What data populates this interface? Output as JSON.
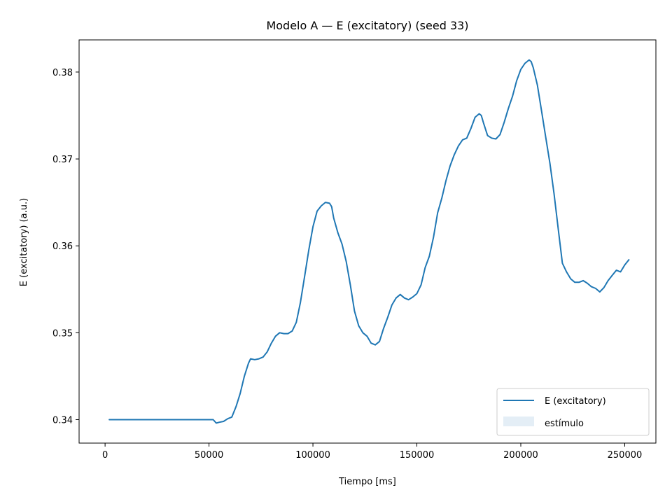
{
  "chart_data": {
    "type": "line",
    "title": "Modelo A — E (excitatory) (seed 33)",
    "xlabel": "Tiempo [ms]",
    "ylabel": "E (excitatory) (a.u.)",
    "xlim": [
      -12500,
      265000
    ],
    "ylim": [
      0.3373,
      0.3837
    ],
    "xticks": [
      0,
      50000,
      100000,
      150000,
      200000,
      250000
    ],
    "xtick_labels": [
      "0",
      "50000",
      "100000",
      "150000",
      "200000",
      "250000"
    ],
    "yticks": [
      0.34,
      0.35,
      0.36,
      0.37,
      0.38
    ],
    "ytick_labels": [
      "0.34",
      "0.35",
      "0.36",
      "0.37",
      "0.38"
    ],
    "grid": false,
    "legend": {
      "position": "bottom-right",
      "entries": [
        {
          "label": "E (excitatory)",
          "kind": "line",
          "color": "#1f77b4"
        },
        {
          "label": "estímulo",
          "kind": "patch",
          "color": "#1f77b4",
          "alpha": 0.12
        }
      ]
    },
    "series": [
      {
        "name": "E (excitatory)",
        "color": "#1f77b4",
        "x": [
          2000,
          10000,
          20000,
          30000,
          40000,
          50000,
          52000,
          53500,
          55000,
          57000,
          59000,
          61000,
          63000,
          65000,
          67000,
          69000,
          70000,
          72000,
          74000,
          76000,
          78000,
          80000,
          82000,
          84000,
          86000,
          88000,
          90000,
          92000,
          94000,
          96000,
          98000,
          100000,
          102000,
          104000,
          106000,
          108000,
          109000,
          110000,
          112000,
          114000,
          116000,
          118000,
          120000,
          122000,
          124000,
          126000,
          128000,
          130000,
          132000,
          134000,
          136000,
          138000,
          140000,
          142000,
          144000,
          146000,
          148000,
          150000,
          152000,
          154000,
          156000,
          158000,
          160000,
          162000,
          164000,
          166000,
          168000,
          170000,
          172000,
          174000,
          176000,
          178000,
          180000,
          181000,
          182000,
          184000,
          186000,
          188000,
          190000,
          192000,
          194000,
          196000,
          198000,
          200000,
          202000,
          204000,
          205000,
          206000,
          208000,
          210000,
          212000,
          214000,
          216000,
          218000,
          220000,
          222000,
          224000,
          226000,
          228000,
          230000,
          232000,
          234000,
          236000,
          238000,
          240000,
          242000,
          244000,
          246000,
          248000,
          250000,
          252000
        ],
        "values": [
          0.34,
          0.34,
          0.34,
          0.34,
          0.34,
          0.34,
          0.34,
          0.3396,
          0.3397,
          0.3398,
          0.3401,
          0.3403,
          0.3415,
          0.343,
          0.345,
          0.3465,
          0.347,
          0.3469,
          0.347,
          0.3472,
          0.3478,
          0.3488,
          0.3496,
          0.35,
          0.3499,
          0.3499,
          0.3502,
          0.3512,
          0.3535,
          0.3565,
          0.3595,
          0.3622,
          0.364,
          0.3646,
          0.365,
          0.3649,
          0.3645,
          0.3632,
          0.3615,
          0.3602,
          0.3582,
          0.3555,
          0.3525,
          0.3508,
          0.35,
          0.3496,
          0.3488,
          0.3486,
          0.349,
          0.3505,
          0.3518,
          0.3532,
          0.354,
          0.3544,
          0.354,
          0.3538,
          0.3541,
          0.3545,
          0.3555,
          0.3575,
          0.3588,
          0.361,
          0.3638,
          0.3655,
          0.3675,
          0.3692,
          0.3705,
          0.3715,
          0.3722,
          0.3724,
          0.3735,
          0.3748,
          0.3752,
          0.375,
          0.3742,
          0.3727,
          0.3724,
          0.3723,
          0.3728,
          0.3742,
          0.3758,
          0.3772,
          0.379,
          0.3803,
          0.381,
          0.3814,
          0.3812,
          0.3805,
          0.3785,
          0.3755,
          0.3725,
          0.3695,
          0.366,
          0.362,
          0.358,
          0.357,
          0.3562,
          0.3558,
          0.3558,
          0.356,
          0.3557,
          0.3553,
          0.3551,
          0.3547,
          0.3552,
          0.356,
          0.3566,
          0.3572,
          0.357,
          0.3578,
          0.3584
        ]
      }
    ]
  }
}
